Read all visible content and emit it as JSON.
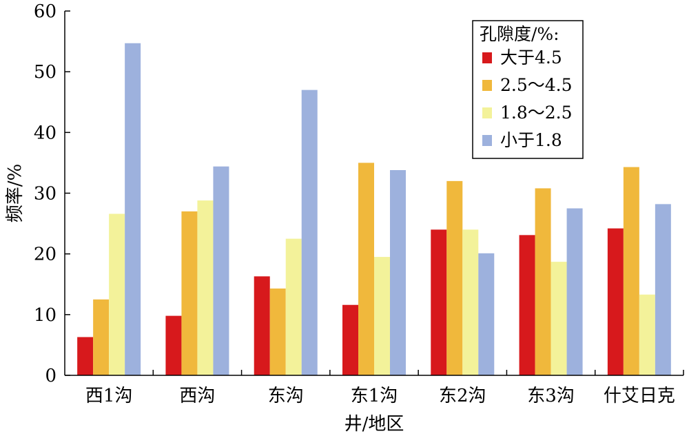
{
  "chart_data": {
    "type": "bar",
    "xlabel": "井/地区",
    "ylabel": "频率/%",
    "ylim": [
      0,
      60
    ],
    "yticks": [
      0,
      10,
      20,
      30,
      40,
      50,
      60
    ],
    "categories": [
      "西1沟",
      "西沟",
      "东沟",
      "东1沟",
      "东2沟",
      "东3沟",
      "什艾日克"
    ],
    "legend": {
      "title": "孔隙度/%:",
      "position": "top-right"
    },
    "series": [
      {
        "name": "大于4.5",
        "color": "#d7191c",
        "values": [
          6.3,
          9.8,
          16.3,
          11.6,
          24.0,
          23.1,
          24.2
        ]
      },
      {
        "name": "2.5～4.5",
        "color": "#f0b83c",
        "values": [
          12.5,
          27.0,
          14.3,
          35.0,
          32.0,
          30.8,
          34.3
        ]
      },
      {
        "name": "1.8～2.5",
        "color": "#f3f29a",
        "values": [
          26.6,
          28.8,
          22.5,
          19.5,
          24.0,
          18.7,
          13.3
        ]
      },
      {
        "name": "小于1.8",
        "color": "#9db1dd",
        "values": [
          54.7,
          34.4,
          47.0,
          33.8,
          20.1,
          27.5,
          28.2
        ]
      }
    ]
  }
}
